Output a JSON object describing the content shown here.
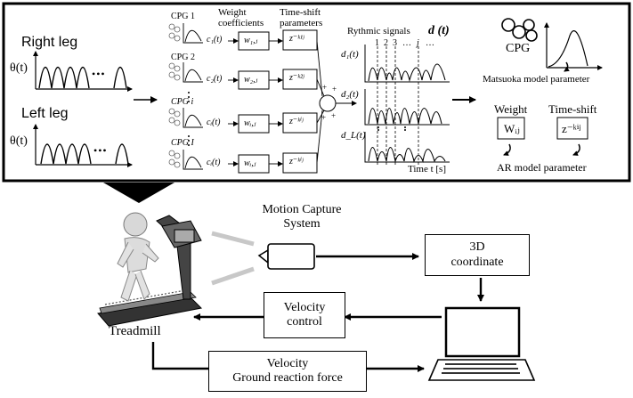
{
  "legs": {
    "right": "Right leg",
    "left": "Left leg",
    "theta": "θ(t)",
    "dots": "• • •"
  },
  "cpg_bank": {
    "weight_header": "Weight\ncoefficients",
    "shift_header": "Time-shift\nparameters",
    "rows": [
      {
        "cpg": "CPG 1",
        "c": "c₁(t)",
        "w": "w₁,ⱼ",
        "z": "z⁻ᵏ¹ʲ"
      },
      {
        "cpg": "CPG 2",
        "c": "c₂(t)",
        "w": "w₂,ⱼ",
        "z": "z⁻ᵏ²ʲ"
      },
      {
        "cpg": "CPG i",
        "c": "cᵢ(t)",
        "w": "wᵢ,ⱼ",
        "z": "z⁻ᵏⁱʲ"
      },
      {
        "cpg": "CPG I",
        "c": "cᵢ(t)",
        "w": "wᵢ,ⱼ",
        "z": "z⁻ᵏⁱʲ"
      }
    ],
    "plus": "+"
  },
  "rhythmic": {
    "title": "Rythmic signals",
    "dt": "d (t)",
    "indices": [
      "1",
      "2",
      "3",
      "…",
      "j",
      "…"
    ],
    "d1": "d₁(t)",
    "d2": "d₂(t)",
    "dL": "d_L(t)",
    "time": "Time t [s]"
  },
  "right_panel": {
    "cpg": "CPG",
    "matsuoka": "Matsuoka model parameter",
    "weight": "Weight",
    "timeshift": "Time-shift",
    "wij": "Wᵢⱼ",
    "zkij": "z⁻ᵏⁱʲ",
    "ar": "AR model parameter"
  },
  "system": {
    "mocap": "Motion Capture\nSystem",
    "coord": "3D\ncoordinate",
    "velctrl": "Velocity\ncontrol",
    "treadmill": "Treadmill",
    "feedback": "Velocity\nGround reaction force"
  }
}
